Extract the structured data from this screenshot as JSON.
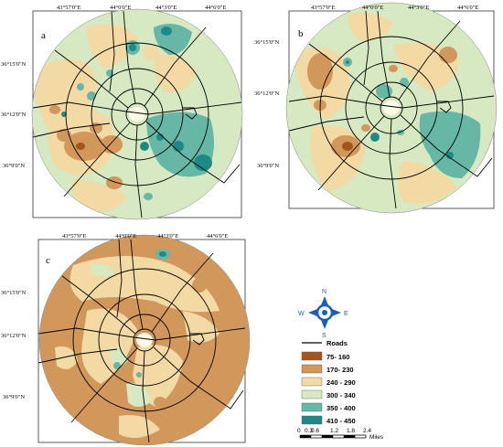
{
  "panels": [
    {
      "label": "a",
      "lon_ticks": [
        "43°57'0\"E",
        "44°0'0\"E",
        "44°3'0\"E",
        "44°6'0\"E"
      ],
      "lat_ticks": [
        "36°15'0\"N",
        "36°12'0\"N",
        "36°9'0\"N"
      ]
    },
    {
      "label": "b",
      "lon_ticks": [
        "43°57'0\"E",
        "44°0'0\"E",
        "44°3'0\"E",
        "44°6'0\"E"
      ],
      "lat_ticks": [
        "36°15'0\"N",
        "36°12'0\"N",
        "36°9'0\"N"
      ]
    },
    {
      "label": "c",
      "lon_ticks": [
        "43°57'0\"E",
        "44°0'0\"E",
        "44°3'0\"E",
        "44°6'0\"E"
      ],
      "lat_ticks": [
        "36°15'0\"N",
        "36°12'0\"N",
        "36°9'0\"N"
      ]
    }
  ],
  "compass": {
    "n": "N",
    "e": "E",
    "s": "S",
    "w": "W"
  },
  "legend": {
    "roads_label": "Roads",
    "road_color": "#000000",
    "classes": [
      {
        "label": "75- 160",
        "color": "#a6541e"
      },
      {
        "label": "170- 230",
        "color": "#d2975a"
      },
      {
        "label": "240 - 290",
        "color": "#f3d9a3"
      },
      {
        "label": "300 - 340",
        "color": "#d6e9c2"
      },
      {
        "label": "350 - 400",
        "color": "#66b7a5"
      },
      {
        "label": "410 - 450",
        "color": "#1e8a88"
      }
    ]
  },
  "scalebar": {
    "ticks": [
      "0",
      "0.3",
      "0.6",
      "1.2",
      "1.8",
      "2.4"
    ],
    "unit": "Miles"
  }
}
